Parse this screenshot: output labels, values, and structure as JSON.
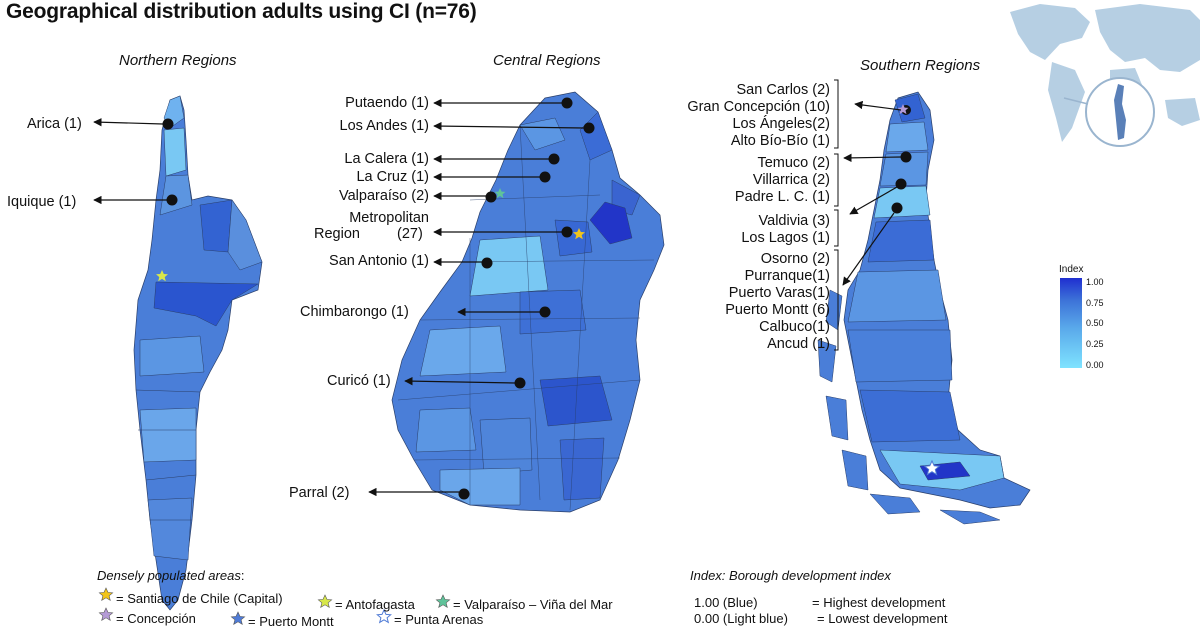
{
  "title": "Geographical distribution adults using CI (n=76)",
  "region_titles": {
    "north": "Northern Regions",
    "central": "Central Regions",
    "south": "Southern Regions"
  },
  "north_labels": [
    "Arica (1)",
    "Iquique (1)"
  ],
  "central_labels": [
    "Putaendo (1)",
    "Los Andes (1)",
    "La Calera (1)",
    "La Cruz (1)",
    "Valparaíso (2)",
    "Metropolitan",
    "Region",
    "(27)",
    "San Antonio (1)",
    "Chimbarongo (1)",
    "Curicó (1)",
    "Parral (2)"
  ],
  "south_labels": [
    "San Carlos (2)",
    "Gran Concepción (10)",
    "Los Ángeles(2)",
    "Alto Bío-Bío  (1)",
    "Temuco  (2)",
    "Villarrica (2)",
    "Padre L. C. (1)",
    "Valdivia   (3)",
    "Los Lagos  (1)",
    "Osorno  (2)",
    "Purranque(1)",
    "Puerto Varas(1)",
    "Puerto Montt (6)",
    "Calbuco(1)",
    "Ancud (1)"
  ],
  "colorbar": {
    "title": "Index",
    "ticks": [
      "1.00",
      "0.75",
      "0.50",
      "0.25",
      "0.00"
    ],
    "colors": [
      "#1f2fd0",
      "#3d73d8",
      "#59a8ea",
      "#7fe3ff"
    ]
  },
  "legend": {
    "heading": "Densely populated areas",
    "heading_suffix": ":",
    "items": [
      {
        "label": "= Santiago de Chile (Capital)",
        "color": "#f2c51b"
      },
      {
        "label": "= Antofagasta",
        "color": "#d8e84a"
      },
      {
        "label": "= Valparaíso – Viña del Mar",
        "color": "#5fc39a"
      },
      {
        "label": "= Concepción",
        "color": "#b49ad6"
      },
      {
        "label": "= Puerto Montt",
        "color": "#4f7bd6"
      },
      {
        "label": "= Punta Arenas",
        "color": "#ffffff"
      }
    ]
  },
  "index_info": {
    "heading": "Index: Borough development index",
    "line1_value": "1.00 (Blue)",
    "line1_desc": "= Highest development",
    "line2_value": "0.00 (Light blue)",
    "line2_desc": "= Lowest development"
  }
}
